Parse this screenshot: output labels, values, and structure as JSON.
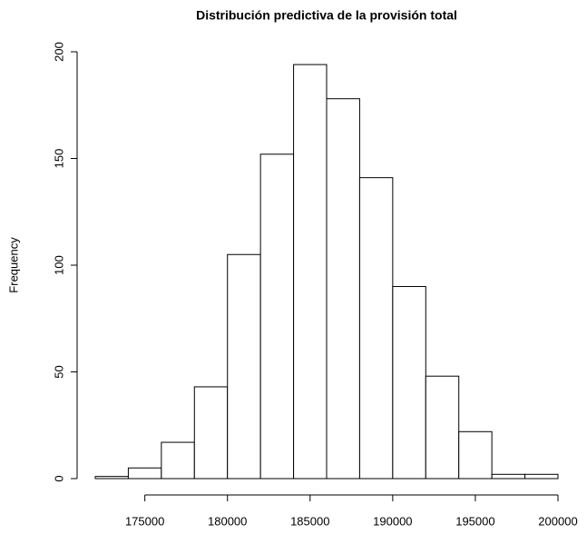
{
  "chart_data": {
    "type": "histogram",
    "title": "Distribución predictiva de la provisión total",
    "y_label": "Frequency",
    "bins": [
      172000,
      174000,
      176000,
      178000,
      180000,
      182000,
      184000,
      186000,
      188000,
      190000,
      192000,
      194000,
      196000,
      198000,
      200000
    ],
    "values": [
      1,
      5,
      17,
      43,
      105,
      152,
      194,
      178,
      141,
      90,
      48,
      22,
      2,
      2
    ],
    "color": "#ffffff",
    "xlim": [
      172000,
      200000
    ],
    "xticks": [
      175000,
      180000,
      185000,
      190000,
      195000,
      200000
    ],
    "ylim": [
      0,
      200
    ],
    "yticks": [
      0,
      50,
      100,
      150,
      200
    ]
  }
}
